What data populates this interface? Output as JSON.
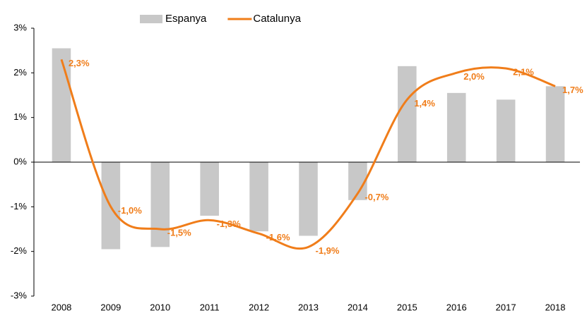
{
  "chart_data": {
    "type": "bar-line",
    "categories": [
      "2008",
      "2009",
      "2010",
      "2011",
      "2012",
      "2013",
      "2014",
      "2015",
      "2016",
      "2017",
      "2018"
    ],
    "series": [
      {
        "name": "Espanya",
        "type": "bar",
        "color": "#c8c8c8",
        "values": [
          2.55,
          -1.95,
          -1.9,
          -1.2,
          -1.55,
          -1.65,
          -0.85,
          2.15,
          1.55,
          1.4,
          1.7
        ]
      },
      {
        "name": "Catalunya",
        "type": "line",
        "color": "#f07d1a",
        "smooth": true,
        "values": [
          2.3,
          -1.0,
          -1.5,
          -1.3,
          -1.6,
          -1.9,
          -0.7,
          1.4,
          2.0,
          2.1,
          1.7
        ],
        "value_labels": [
          "2,3%",
          "-1,0%",
          "-1,5%",
          "-1,3%",
          "-1,6%",
          "-1,9%",
          "-0,7%",
          "1,4%",
          "2,0%",
          "2,1%",
          "1,7%"
        ]
      }
    ],
    "ylim": [
      -3,
      3
    ],
    "yticks": [
      {
        "value": -3,
        "label": "-3%"
      },
      {
        "value": -2,
        "label": "-2%"
      },
      {
        "value": -1,
        "label": "-1%"
      },
      {
        "value": 0,
        "label": "0%"
      },
      {
        "value": 1,
        "label": "1%"
      },
      {
        "value": 2,
        "label": "2%"
      },
      {
        "value": 3,
        "label": "3%"
      }
    ],
    "grid": false,
    "legend": "top"
  }
}
